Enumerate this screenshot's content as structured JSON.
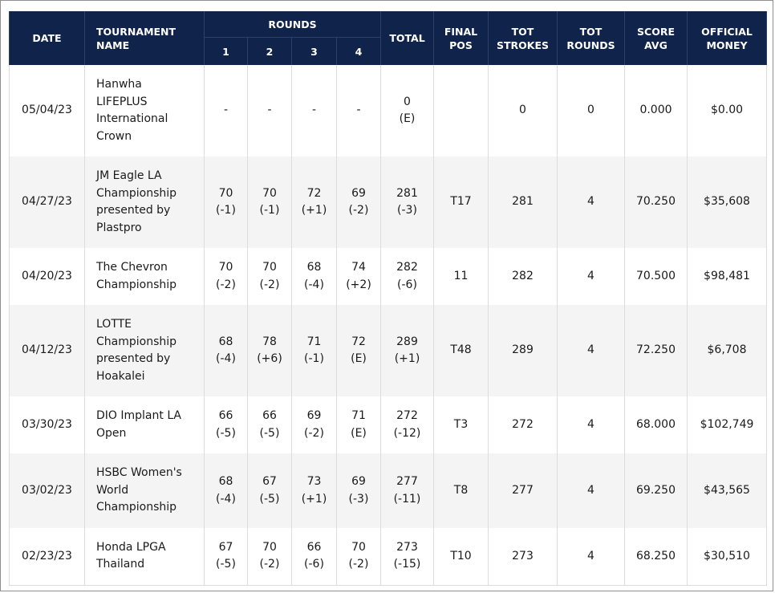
{
  "header": {
    "date": "DATE",
    "tournament_line1": "TOURNAMENT",
    "tournament_line2": "NAME",
    "rounds": "ROUNDS",
    "round_numbers": [
      "1",
      "2",
      "3",
      "4"
    ],
    "total": "TOTAL",
    "final_pos_line1": "FINAL",
    "final_pos_line2": "POS",
    "tot_strokes_line1": "TOT",
    "tot_strokes_line2": "STROKES",
    "tot_rounds_line1": "TOT",
    "tot_rounds_line2": "ROUNDS",
    "score_avg_line1": "SCORE",
    "score_avg_line2": "AVG",
    "money_line1": "OFFICIAL",
    "money_line2": "MONEY"
  },
  "rows": [
    {
      "date": "05/04/23",
      "name_lines": [
        "Hanwha",
        "LIFEPLUS",
        "International",
        "Crown"
      ],
      "rounds": [
        [
          "-",
          ""
        ],
        [
          "-",
          ""
        ],
        [
          "-",
          ""
        ],
        [
          "-",
          ""
        ]
      ],
      "total": [
        "0",
        "(E)"
      ],
      "final_pos": "",
      "tot_strokes": "0",
      "tot_rounds": "0",
      "score_avg": "0.000",
      "money": "$0.00"
    },
    {
      "date": "04/27/23",
      "name_lines": [
        "JM Eagle LA",
        "Championship",
        "presented by",
        "Plastpro"
      ],
      "rounds": [
        [
          "70",
          "(-1)"
        ],
        [
          "70",
          "(-1)"
        ],
        [
          "72",
          "(+1)"
        ],
        [
          "69",
          "(-2)"
        ]
      ],
      "total": [
        "281",
        "(-3)"
      ],
      "final_pos": "T17",
      "tot_strokes": "281",
      "tot_rounds": "4",
      "score_avg": "70.250",
      "money": "$35,608"
    },
    {
      "date": "04/20/23",
      "name_lines": [
        "The Chevron",
        "Championship"
      ],
      "rounds": [
        [
          "70",
          "(-2)"
        ],
        [
          "70",
          "(-2)"
        ],
        [
          "68",
          "(-4)"
        ],
        [
          "74",
          "(+2)"
        ]
      ],
      "total": [
        "282",
        "(-6)"
      ],
      "final_pos": "11",
      "tot_strokes": "282",
      "tot_rounds": "4",
      "score_avg": "70.500",
      "money": "$98,481"
    },
    {
      "date": "04/12/23",
      "name_lines": [
        "LOTTE",
        "Championship",
        "presented by",
        "Hoakalei"
      ],
      "rounds": [
        [
          "68",
          "(-4)"
        ],
        [
          "78",
          "(+6)"
        ],
        [
          "71",
          "(-1)"
        ],
        [
          "72",
          "(E)"
        ]
      ],
      "total": [
        "289",
        "(+1)"
      ],
      "final_pos": "T48",
      "tot_strokes": "289",
      "tot_rounds": "4",
      "score_avg": "72.250",
      "money": "$6,708"
    },
    {
      "date": "03/30/23",
      "name_lines": [
        "DIO Implant LA",
        "Open"
      ],
      "rounds": [
        [
          "66",
          "(-5)"
        ],
        [
          "66",
          "(-5)"
        ],
        [
          "69",
          "(-2)"
        ],
        [
          "71",
          "(E)"
        ]
      ],
      "total": [
        "272",
        "(-12)"
      ],
      "final_pos": "T3",
      "tot_strokes": "272",
      "tot_rounds": "4",
      "score_avg": "68.000",
      "money": "$102,749"
    },
    {
      "date": "03/02/23",
      "name_lines": [
        "HSBC Women's",
        "World",
        "Championship"
      ],
      "rounds": [
        [
          "68",
          "(-4)"
        ],
        [
          "67",
          "(-5)"
        ],
        [
          "73",
          "(+1)"
        ],
        [
          "69",
          "(-3)"
        ]
      ],
      "total": [
        "277",
        "(-11)"
      ],
      "final_pos": "T8",
      "tot_strokes": "277",
      "tot_rounds": "4",
      "score_avg": "69.250",
      "money": "$43,565"
    },
    {
      "date": "02/23/23",
      "name_lines": [
        "Honda LPGA",
        "Thailand"
      ],
      "rounds": [
        [
          "67",
          "(-5)"
        ],
        [
          "70",
          "(-2)"
        ],
        [
          "66",
          "(-6)"
        ],
        [
          "70",
          "(-2)"
        ]
      ],
      "total": [
        "273",
        "(-15)"
      ],
      "final_pos": "T10",
      "tot_strokes": "273",
      "tot_rounds": "4",
      "score_avg": "68.250",
      "money": "$30,510"
    }
  ],
  "colors": {
    "header_bg": "#10234b",
    "header_text": "#ffffff",
    "row_alt_bg": "#f4f4f4",
    "border": "#dcdcdc"
  }
}
